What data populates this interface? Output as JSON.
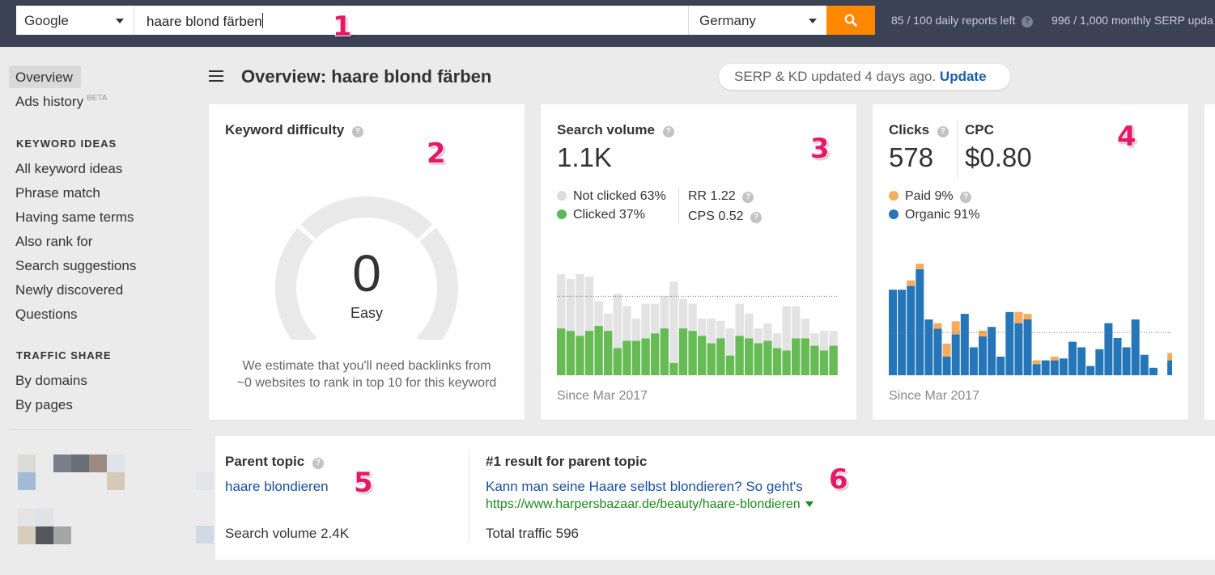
{
  "search": {
    "engine": "Google",
    "query": "haare blond färben",
    "country": "Germany",
    "quota_daily": "85 / 100 daily reports left",
    "quota_monthly": "996 / 1,000 monthly SERP upda"
  },
  "sidebar": {
    "overview": "Overview",
    "ads_history": "Ads history",
    "beta": "BETA",
    "keyword_ideas_heading": "KEYWORD IDEAS",
    "keyword_ideas": [
      "All keyword ideas",
      "Phrase match",
      "Having same terms",
      "Also rank for",
      "Search suggestions",
      "Newly discovered",
      "Questions"
    ],
    "traffic_share_heading": "TRAFFIC SHARE",
    "traffic_share": [
      "By domains",
      "By pages"
    ]
  },
  "header": {
    "title": "Overview: haare blond färben",
    "updated_text": "SERP & KD updated 4 days ago.",
    "update_link": "Update"
  },
  "kd": {
    "title": "Keyword difficulty",
    "value": "0",
    "label": "Easy",
    "description_1": "We estimate that you'll need backlinks from",
    "description_2": "~0 websites to rank in top 10 for this keyword"
  },
  "volume": {
    "title": "Search volume",
    "value": "1.1K",
    "not_clicked": "Not clicked 63%",
    "clicked": "Clicked 37%",
    "rr": "RR 1.22",
    "cps": "CPS 0.52",
    "since": "Since Mar 2017"
  },
  "clicks": {
    "clicks_title": "Clicks",
    "clicks_value": "578",
    "cpc_title": "CPC",
    "cpc_value": "$0.80",
    "paid": "Paid 9%",
    "organic": "Organic 91%",
    "since": "Since Mar 2017"
  },
  "parent": {
    "title": "Parent topic",
    "topic": "haare blondieren",
    "volume": "Search volume 2.4K",
    "result_title": "#1 result for parent topic",
    "result_link": "Kann man seine Haare selbst blondieren? So geht's",
    "result_url": "https://www.harpersbazaar.de/beauty/haare-blondieren",
    "result_traffic": "Total traffic 596"
  },
  "callouts": [
    "1",
    "2",
    "3",
    "4",
    "5",
    "6"
  ],
  "colors": {
    "topbar": "#3a4254",
    "accent_orange": "#ff8800",
    "clicked_green": "#66bb55",
    "not_clicked_gray": "#e3e3e3",
    "paid_orange": "#f6ac5d",
    "organic_blue": "#2576b9",
    "link_blue": "#1a4fa0",
    "url_green": "#1e8a1e",
    "callout_pink": "#e8176a"
  },
  "chart_data": [
    {
      "type": "bar",
      "stacked": true,
      "series": [
        {
          "name": "Clicked",
          "values": [
            19,
            18,
            16,
            18,
            20,
            18,
            11,
            14,
            14,
            15,
            17,
            19,
            5,
            19,
            18,
            16,
            13,
            15,
            8,
            16,
            15,
            13,
            14,
            11,
            10,
            15,
            15,
            12,
            10,
            12
          ]
        },
        {
          "name": "Not clicked",
          "values": [
            22,
            21,
            25,
            22,
            10,
            7,
            22,
            14,
            9,
            14,
            12,
            13,
            33,
            12,
            11,
            7,
            10,
            7,
            11,
            13,
            10,
            6,
            7,
            6,
            18,
            13,
            8,
            5,
            8,
            6
          ]
        }
      ],
      "reference_line": 32
    },
    {
      "type": "bar",
      "stacked": true,
      "series": [
        {
          "name": "Organic",
          "values": [
            46,
            46,
            48,
            57,
            30,
            25,
            10,
            22,
            33,
            15,
            21,
            26,
            10,
            34,
            28,
            30,
            6,
            8,
            8,
            9,
            18,
            15,
            5,
            14,
            28,
            20,
            15,
            30,
            11,
            4,
            0,
            8
          ]
        },
        {
          "name": "Paid",
          "values": [
            0,
            0,
            3,
            3,
            0,
            3,
            7,
            7,
            0,
            0,
            3,
            0,
            0,
            0,
            6,
            3,
            2,
            0,
            2,
            0,
            0,
            0,
            0,
            0,
            0,
            0,
            0,
            0,
            0,
            0,
            0,
            4
          ]
        }
      ],
      "reference_line": 23
    }
  ]
}
